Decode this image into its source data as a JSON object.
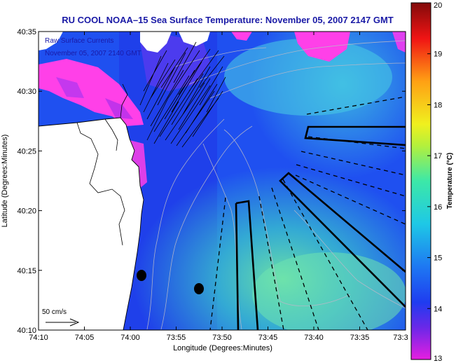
{
  "title": "RU COOL  NOAA–15  Sea Surface Temperature:  November 05, 2007 2147 GMT",
  "overlay_lines": [
    "Raw Surface Currents",
    "November 05, 2007 2140 GMT"
  ],
  "x_axis": {
    "label": "Longitude (Degrees:Minutes)",
    "ticks": [
      "74:10",
      "74:05",
      "74:00",
      "73:55",
      "73:50",
      "73:45",
      "73:40",
      "73:35",
      "73:3"
    ]
  },
  "y_axis": {
    "label": "Latitude (Degrees:Minutes)",
    "ticks": [
      "40:35",
      "40:30",
      "40:25",
      "40:20",
      "40:15",
      "40:10"
    ]
  },
  "colorbar": {
    "label": "Temperature (°C)",
    "ticks": [
      "20",
      "19",
      "18",
      "17",
      "16",
      "15",
      "14",
      "13"
    ],
    "range": [
      13,
      20
    ]
  },
  "scale": {
    "label": "50 cm/s"
  },
  "colors": {
    "title": "#1a1aa6",
    "sea_deep": "#1f3cf0",
    "sea_mid": "#29a8e8",
    "sea_warm": "#5fe0b0",
    "cold_water": "#ff40e8",
    "land": "#ffffff"
  }
}
